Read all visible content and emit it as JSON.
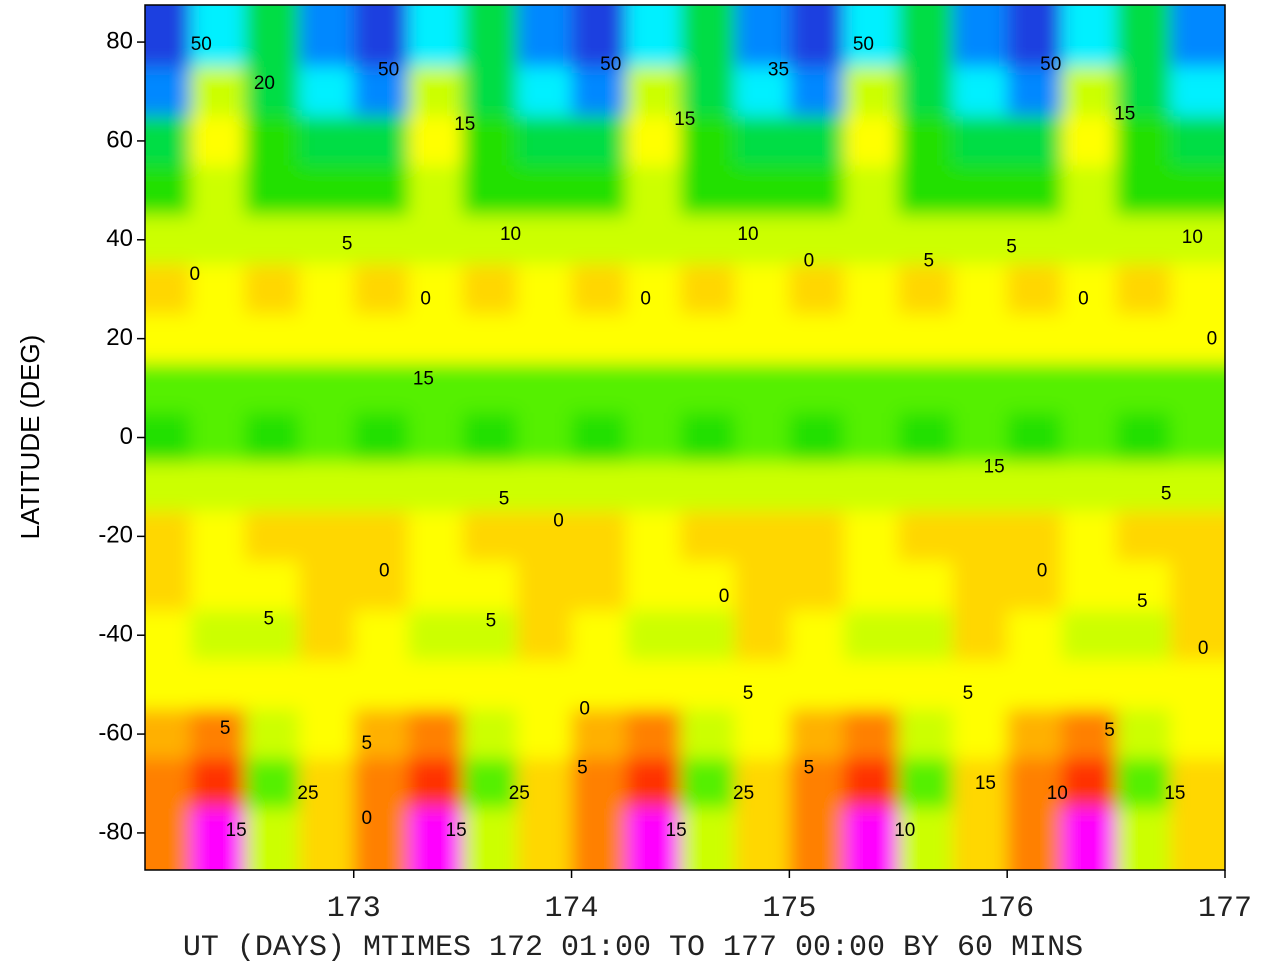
{
  "chart_data": {
    "type": "contour",
    "xlabel": "UT (DAYS) MTIMES 172 01:00 TO 177 00:00 BY   60 MINS",
    "ylabel": "LATITUDE (DEG)",
    "xlim": [
      172.0417,
      177
    ],
    "ylim": [
      -87.5,
      87.5
    ],
    "xticks": [
      173,
      174,
      175,
      176,
      177
    ],
    "yticks": [
      -80,
      -60,
      -40,
      -20,
      0,
      20,
      40,
      60,
      80
    ],
    "x": [
      172.125,
      172.375,
      172.625,
      172.875,
      173.125,
      173.375,
      173.625,
      173.875,
      174.125,
      174.375,
      174.625,
      174.875,
      175.125,
      175.375,
      175.625,
      175.875,
      176.125,
      176.375,
      176.625,
      176.875
    ],
    "y": [
      80,
      70,
      60,
      50,
      40,
      30,
      20,
      10,
      0,
      -10,
      -20,
      -30,
      -40,
      -50,
      -60,
      -70,
      -80
    ],
    "z": [
      [
        -55,
        -35,
        -30,
        -45,
        -55,
        -35,
        -30,
        -45,
        -55,
        -35,
        -30,
        -45,
        -55,
        -35,
        -30,
        -45,
        -55,
        -35,
        -30,
        -45
      ],
      [
        -45,
        -8,
        -22,
        -35,
        -45,
        -8,
        -22,
        -35,
        -45,
        -8,
        -22,
        -35,
        -45,
        -8,
        -22,
        -35,
        -45,
        -8,
        -22,
        -35
      ],
      [
        -28,
        -4,
        -20,
        -22,
        -28,
        -4,
        -20,
        -22,
        -28,
        -4,
        -20,
        -22,
        -28,
        -4,
        -20,
        -22,
        -28,
        -4,
        -20,
        -22
      ],
      [
        -18,
        -10,
        -18,
        -16,
        -18,
        -10,
        -18,
        -16,
        -18,
        -10,
        -18,
        -16,
        -18,
        -10,
        -18,
        -16,
        -18,
        -10,
        -18,
        -16
      ],
      [
        -9,
        -8,
        -9,
        -9,
        -9,
        -8,
        -9,
        -9,
        -9,
        -8,
        -9,
        -9,
        -9,
        -8,
        -9,
        -9,
        -9,
        -8,
        -9,
        -9
      ],
      [
        2,
        -2,
        3,
        -1,
        2,
        -2,
        3,
        -1,
        2,
        -2,
        3,
        -1,
        2,
        -2,
        3,
        -1,
        2,
        -2,
        3,
        -1
      ],
      [
        -4,
        -5,
        -4,
        -4,
        -4,
        -5,
        -4,
        -4,
        -4,
        -5,
        -4,
        -4,
        -4,
        -5,
        -4,
        -4,
        -4,
        -5,
        -4,
        -4
      ],
      [
        -12,
        -13,
        -12,
        -12,
        -12,
        -13,
        -12,
        -12,
        -12,
        -13,
        -12,
        -12,
        -12,
        -13,
        -12,
        -12,
        -12,
        -13,
        -12,
        -12
      ],
      [
        -18,
        -14,
        -17,
        -14,
        -18,
        -14,
        -17,
        -14,
        -18,
        -14,
        -17,
        -14,
        -18,
        -14,
        -17,
        -14,
        -18,
        -14,
        -17,
        -14
      ],
      [
        -9,
        -10,
        -9,
        -8,
        -9,
        -10,
        -9,
        -8,
        -9,
        -10,
        -9,
        -8,
        -9,
        -10,
        -9,
        -8,
        -9,
        -10,
        -9,
        -8
      ],
      [
        1,
        -4,
        2,
        3,
        1,
        -4,
        2,
        3,
        1,
        -4,
        2,
        3,
        1,
        -4,
        2,
        3,
        1,
        -4,
        2,
        3
      ],
      [
        0,
        -5,
        -2,
        3,
        0,
        -5,
        -2,
        3,
        0,
        -5,
        -2,
        3,
        0,
        -5,
        -2,
        3,
        0,
        -5,
        -2,
        3
      ],
      [
        -3,
        -8,
        -6,
        1,
        -3,
        -8,
        -6,
        1,
        -3,
        -8,
        -6,
        1,
        -3,
        -8,
        -6,
        1,
        -3,
        -8,
        -6,
        1
      ],
      [
        -2,
        -3,
        -4,
        -3,
        -2,
        -3,
        -4,
        -3,
        -2,
        -3,
        -4,
        -3,
        -2,
        -3,
        -4,
        -3,
        -2,
        -3,
        -4,
        -3
      ],
      [
        6,
        10,
        -6,
        -3,
        6,
        10,
        -6,
        -3,
        6,
        10,
        -6,
        -3,
        6,
        10,
        -6,
        -3,
        6,
        10,
        -6,
        -3
      ],
      [
        12,
        22,
        -12,
        2,
        12,
        22,
        -12,
        2,
        12,
        22,
        -12,
        2,
        12,
        22,
        -12,
        2,
        12,
        22,
        -12,
        2
      ],
      [
        15,
        45,
        -8,
        3,
        15,
        45,
        -8,
        3,
        15,
        45,
        -8,
        3,
        15,
        45,
        -8,
        3,
        15,
        45,
        -8,
        3
      ]
    ],
    "levels": [
      -50,
      -40,
      -30,
      -20,
      -15,
      -10,
      -5,
      0,
      5,
      10,
      20,
      30,
      40
    ],
    "colors": [
      "#1a3fe0",
      "#0088ff",
      "#00f0ff",
      "#00dd44",
      "#22e000",
      "#55f000",
      "#ccff00",
      "#ffff00",
      "#ffd700",
      "#ffb000",
      "#ff8000",
      "#ff3000",
      "#ee0020",
      "#ff00ff"
    ],
    "annotations": [
      {
        "text": "50",
        "x": 172.3,
        "y": 79.4
      },
      {
        "text": "20",
        "x": 172.59,
        "y": 71.5
      },
      {
        "text": "50",
        "x": 173.16,
        "y": 74.3
      },
      {
        "text": "15",
        "x": 173.51,
        "y": 63.2
      },
      {
        "text": "50",
        "x": 174.18,
        "y": 75.4
      },
      {
        "text": "15",
        "x": 174.52,
        "y": 64.2
      },
      {
        "text": "35",
        "x": 174.95,
        "y": 74.3
      },
      {
        "text": "50",
        "x": 175.34,
        "y": 79.4
      },
      {
        "text": "50",
        "x": 176.2,
        "y": 75.4
      },
      {
        "text": "15",
        "x": 176.54,
        "y": 65.3
      },
      {
        "text": "0",
        "x": 172.27,
        "y": 32.9
      },
      {
        "text": "5",
        "x": 172.97,
        "y": 39
      },
      {
        "text": "10",
        "x": 173.72,
        "y": 41
      },
      {
        "text": "10",
        "x": 174.81,
        "y": 41
      },
      {
        "text": "5",
        "x": 175.64,
        "y": 35.6
      },
      {
        "text": "5",
        "x": 176.02,
        "y": 38.4
      },
      {
        "text": "10",
        "x": 176.85,
        "y": 40.4
      },
      {
        "text": "0",
        "x": 173.33,
        "y": 27.9
      },
      {
        "text": "0",
        "x": 174.34,
        "y": 27.9
      },
      {
        "text": "0",
        "x": 175.09,
        "y": 35.6
      },
      {
        "text": "0",
        "x": 176.35,
        "y": 27.9
      },
      {
        "text": "0",
        "x": 176.94,
        "y": 19.8
      },
      {
        "text": "15",
        "x": 173.32,
        "y": 11.7
      },
      {
        "text": "15",
        "x": 175.94,
        "y": -6.1
      },
      {
        "text": "5",
        "x": 173.69,
        "y": -12.5
      },
      {
        "text": "0",
        "x": 173.94,
        "y": -17
      },
      {
        "text": "5",
        "x": 176.73,
        "y": -11.5
      },
      {
        "text": "0",
        "x": 173.14,
        "y": -27.1
      },
      {
        "text": "0",
        "x": 176.16,
        "y": -27.1
      },
      {
        "text": "5",
        "x": 172.61,
        "y": -36.8
      },
      {
        "text": "5",
        "x": 173.63,
        "y": -37.2
      },
      {
        "text": "0",
        "x": 174.7,
        "y": -32.3
      },
      {
        "text": "5",
        "x": 176.62,
        "y": -33.3
      },
      {
        "text": "0",
        "x": 176.9,
        "y": -42.8
      },
      {
        "text": "5",
        "x": 172.41,
        "y": -59
      },
      {
        "text": "0",
        "x": 174.06,
        "y": -55
      },
      {
        "text": "5",
        "x": 174.81,
        "y": -51.9
      },
      {
        "text": "5",
        "x": 175.82,
        "y": -51.9
      },
      {
        "text": "5",
        "x": 176.47,
        "y": -59.4
      },
      {
        "text": "5",
        "x": 173.06,
        "y": -62
      },
      {
        "text": "5",
        "x": 174.05,
        "y": -67
      },
      {
        "text": "5",
        "x": 175.09,
        "y": -67
      },
      {
        "text": "25",
        "x": 172.79,
        "y": -72.1
      },
      {
        "text": "25",
        "x": 173.76,
        "y": -72.1
      },
      {
        "text": "25",
        "x": 174.79,
        "y": -72.1
      },
      {
        "text": "15",
        "x": 175.9,
        "y": -70.1
      },
      {
        "text": "15",
        "x": 176.77,
        "y": -72.1
      },
      {
        "text": "10",
        "x": 176.23,
        "y": -72.1
      },
      {
        "text": "0",
        "x": 173.06,
        "y": -77.2
      },
      {
        "text": "15",
        "x": 172.46,
        "y": -79.6
      },
      {
        "text": "15",
        "x": 173.47,
        "y": -79.6
      },
      {
        "text": "15",
        "x": 174.48,
        "y": -79.6
      },
      {
        "text": "10",
        "x": 175.53,
        "y": -79.6
      }
    ]
  }
}
